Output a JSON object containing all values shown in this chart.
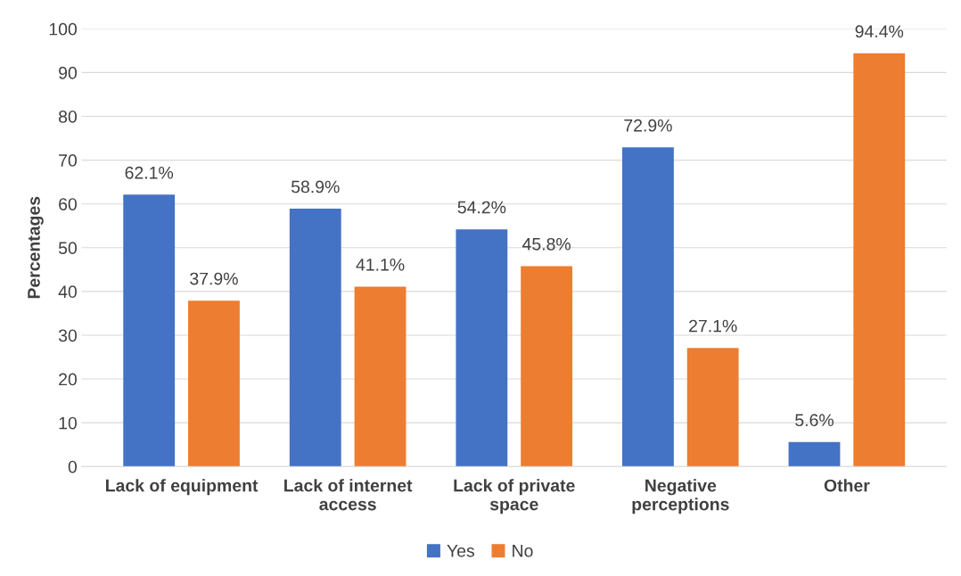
{
  "chart_data": {
    "type": "bar",
    "ylabel": "Percentages",
    "categories": [
      "Lack of equipment",
      "Lack of internet access",
      "Lack of private space",
      "Negative perceptions",
      "Other"
    ],
    "series": [
      {
        "name": "Yes",
        "color": "#4472c4",
        "values": [
          62.1,
          58.9,
          54.2,
          72.9,
          5.6
        ],
        "value_labels": [
          "62.1%",
          "58.9%",
          "54.2%",
          "72.9%",
          "5.6%"
        ]
      },
      {
        "name": "No",
        "color": "#ed7d31",
        "values": [
          37.9,
          41.1,
          45.8,
          27.1,
          94.4
        ],
        "value_labels": [
          "37.9%",
          "41.1%",
          "45.8%",
          "27.1%",
          "94.4%"
        ]
      }
    ],
    "ylim": [
      0,
      100
    ],
    "yticks": [
      0,
      10,
      20,
      30,
      40,
      50,
      60,
      70,
      80,
      90,
      100
    ],
    "grid": "y",
    "legend": "bottom"
  }
}
